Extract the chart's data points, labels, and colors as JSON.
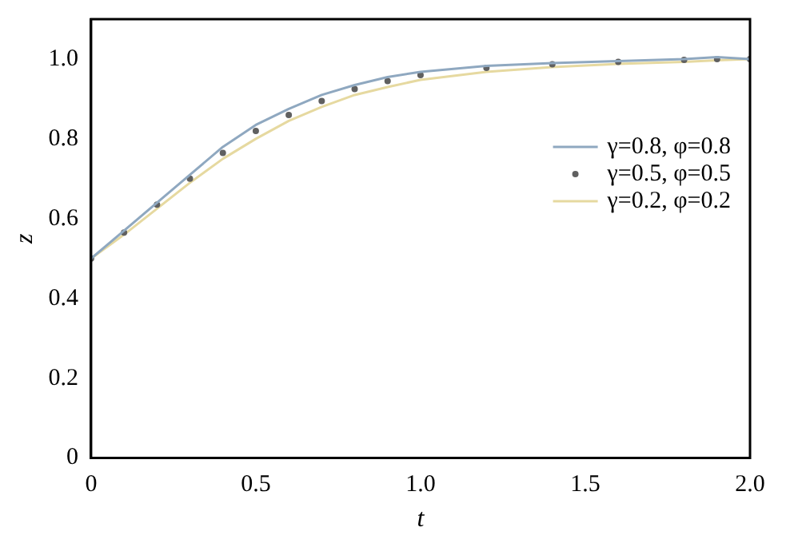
{
  "chart_data": {
    "type": "line",
    "xlabel": "t",
    "ylabel": "z",
    "x": [
      0,
      0.1,
      0.2,
      0.3,
      0.4,
      0.5,
      0.6,
      0.7,
      0.8,
      0.9,
      1.0,
      1.2,
      1.4,
      1.6,
      1.8,
      1.9,
      2.0
    ],
    "series": [
      {
        "name": "γ=0.8, φ=0.8",
        "type": "line",
        "color": "#8fa8c0",
        "marker": "none",
        "values": [
          0.5,
          0.57,
          0.64,
          0.71,
          0.78,
          0.835,
          0.875,
          0.91,
          0.935,
          0.955,
          0.968,
          0.983,
          0.99,
          0.995,
          1.0,
          1.005,
          1.0
        ]
      },
      {
        "name": "γ=0.5, φ=0.5",
        "type": "scatter",
        "color": "#606060",
        "marker": "circle",
        "values": [
          0.5,
          0.565,
          0.635,
          0.7,
          0.765,
          0.82,
          0.86,
          0.895,
          0.925,
          0.945,
          0.96,
          0.978,
          0.987,
          0.993,
          0.998,
          1.0,
          1.0
        ]
      },
      {
        "name": "γ=0.2, φ=0.2",
        "type": "line",
        "color": "#e6d9a0",
        "marker": "none",
        "values": [
          0.5,
          0.56,
          0.625,
          0.69,
          0.75,
          0.8,
          0.845,
          0.88,
          0.91,
          0.93,
          0.948,
          0.968,
          0.98,
          0.988,
          0.993,
          0.997,
          1.0
        ]
      }
    ],
    "xlim": [
      0,
      2
    ],
    "xticks": [
      0,
      0.5,
      {
        "value": 1,
        "label": "1.0"
      },
      1.5,
      {
        "value": 2,
        "label": "2.0"
      }
    ],
    "ylim": [
      0,
      1.1
    ],
    "yticks": [
      0,
      0.2,
      0.4,
      0.6,
      0.8,
      {
        "value": 1,
        "label": "1.0"
      }
    ],
    "grid": false,
    "legend": "right"
  }
}
